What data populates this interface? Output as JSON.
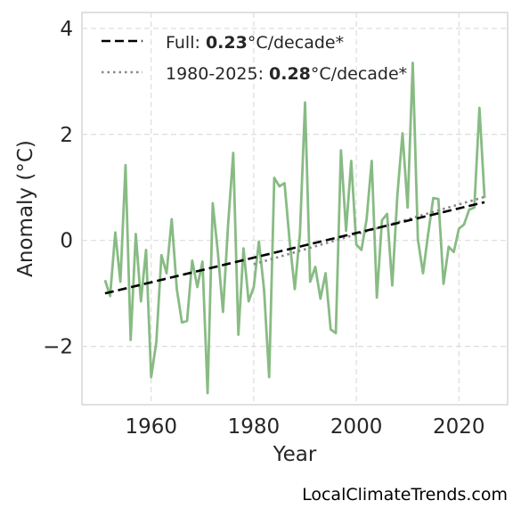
{
  "chart_data": {
    "type": "line",
    "xlabel": "Year",
    "ylabel": "Anomaly (°C)",
    "xlim": [
      1946.5,
      2029.5
    ],
    "ylim": [
      -3.1,
      4.3
    ],
    "xticks": [
      "1960",
      "1980",
      "2000",
      "2020"
    ],
    "yticks": [
      "−2",
      "0",
      "2",
      "4"
    ],
    "xtick_values": [
      1960,
      1980,
      2000,
      2020
    ],
    "ytick_values": [
      -2,
      0,
      2,
      4
    ],
    "grid": true,
    "legend_position": "top-left",
    "x": [
      1951,
      1952,
      1953,
      1954,
      1955,
      1956,
      1957,
      1958,
      1959,
      1960,
      1961,
      1962,
      1963,
      1964,
      1965,
      1966,
      1967,
      1968,
      1969,
      1970,
      1971,
      1972,
      1973,
      1974,
      1975,
      1976,
      1977,
      1978,
      1979,
      1980,
      1981,
      1982,
      1983,
      1984,
      1985,
      1986,
      1987,
      1988,
      1989,
      1990,
      1991,
      1992,
      1993,
      1994,
      1995,
      1996,
      1997,
      1998,
      1999,
      2000,
      2001,
      2002,
      2003,
      2004,
      2005,
      2006,
      2007,
      2008,
      2009,
      2010,
      2011,
      2012,
      2013,
      2014,
      2015,
      2016,
      2017,
      2018,
      2019,
      2020,
      2021,
      2022,
      2023,
      2024,
      2025
    ],
    "series": [
      {
        "color": "#88bb84",
        "values": [
          -0.75,
          -1.05,
          0.15,
          -0.78,
          1.42,
          -1.88,
          0.12,
          -1.15,
          -0.18,
          -2.58,
          -1.92,
          -0.28,
          -0.62,
          0.4,
          -0.92,
          -1.55,
          -1.52,
          -0.38,
          -0.88,
          -0.4,
          -2.88,
          0.7,
          -0.22,
          -1.35,
          0.3,
          1.65,
          -1.78,
          -0.15,
          -1.15,
          -0.88,
          -0.02,
          -0.92,
          -2.58,
          1.18,
          1.02,
          1.08,
          -0.02,
          -0.92,
          0.12,
          2.6,
          -0.78,
          -0.5,
          -1.1,
          -0.62,
          -1.68,
          -1.75,
          1.7,
          0.18,
          1.5,
          -0.08,
          -0.18,
          0.4,
          1.5,
          -1.08,
          0.38,
          0.5,
          -0.85,
          0.85,
          2.02,
          0.62,
          3.35,
          0.02,
          -0.62,
          0.12,
          0.8,
          0.78,
          -0.82,
          -0.12,
          -0.22,
          0.22,
          0.3,
          0.58,
          0.62,
          2.5,
          0.8
        ]
      }
    ],
    "trend_full": {
      "style": "dashed",
      "color": "#000000",
      "x": [
        1951,
        2025
      ],
      "y": [
        -1.0,
        0.72
      ]
    },
    "trend_recent": {
      "style": "dotted",
      "color": "#888888",
      "x": [
        1980,
        2025
      ],
      "y": [
        -0.45,
        0.82
      ]
    },
    "legend": [
      {
        "prefix": "Full: ",
        "bold": "0.23",
        "suffix": "°C/decade*"
      },
      {
        "prefix": "1980-2025: ",
        "bold": "0.28",
        "suffix": "°C/decade*"
      }
    ]
  },
  "credit": "LocalClimateTrends.com"
}
